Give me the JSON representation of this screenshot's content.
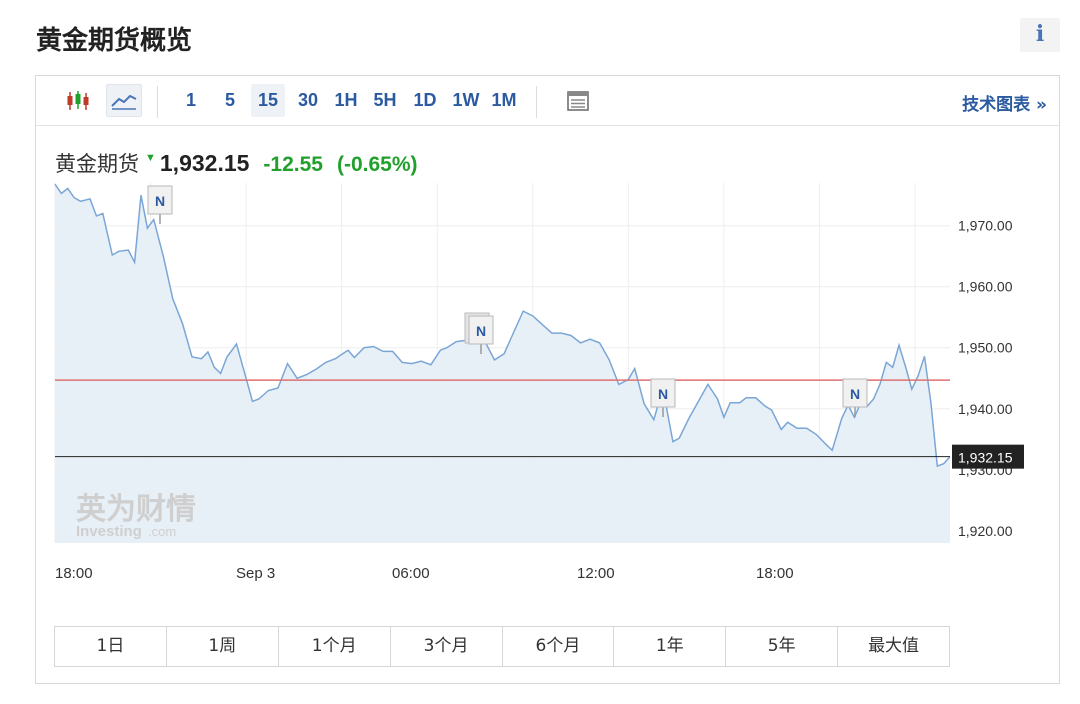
{
  "page": {
    "title": "黄金期货概览",
    "info_label": "i"
  },
  "toolbar": {
    "chart_type_icons": [
      "candlestick-icon",
      "line-chart-icon"
    ],
    "intervals": [
      "1",
      "5",
      "15",
      "30",
      "1H",
      "5H",
      "1D",
      "1W",
      "1M"
    ],
    "active_interval": "15",
    "table_icon": "table-icon",
    "tech_link": "技术图表 »"
  },
  "quote": {
    "name": "黄金期货",
    "direction": "down",
    "price": "1,932.15",
    "change": "-12.55",
    "change_pct": "(-0.65%)"
  },
  "watermark": {
    "cn": "英为财情",
    "en_main": "Investing",
    "en_suffix": ".com"
  },
  "periods": [
    "1日",
    "1周",
    "1个月",
    "3个月",
    "6个月",
    "1年",
    "5年",
    "最大值"
  ],
  "colors": {
    "line": "#7aa6d6",
    "area": "#e6eef6",
    "reference_line": "#e07070",
    "price_line": "#222222",
    "down": "#21a12b",
    "link": "#2b5aa0"
  },
  "chart_data": {
    "type": "area",
    "title": "",
    "xlabel": "",
    "ylabel": "",
    "ylim": [
      1918,
      1977
    ],
    "y_ticks": [
      "1,920.00",
      "1,930.00",
      "1,940.00",
      "1,950.00",
      "1,960.00",
      "1,970.00"
    ],
    "y_tick_values": [
      1920,
      1930,
      1940,
      1950,
      1960,
      1970
    ],
    "x_ticks": [
      "18:00",
      "Sep 3",
      "06:00",
      "12:00",
      "18:00"
    ],
    "x_tick_hours": [
      0,
      6,
      12,
      18,
      24
    ],
    "x_range_hours": [
      0,
      26.3
    ],
    "reference_line": 1944.7,
    "last_price_label": "1,932.15",
    "last_price": 1932.15,
    "news_markers": [
      {
        "label": "N",
        "hour": 3.2
      },
      {
        "label": "N",
        "hour": 12.7
      },
      {
        "label": "N",
        "hour": 18.3
      },
      {
        "label": "N",
        "hour": 23.8
      }
    ],
    "series": [
      {
        "values": [
          [
            0.0,
            1976.8
          ],
          [
            0.2,
            1975.3
          ],
          [
            0.4,
            1976.1
          ],
          [
            0.6,
            1974.6
          ],
          [
            0.8,
            1974.0
          ],
          [
            1.1,
            1974.4
          ],
          [
            1.3,
            1971.6
          ],
          [
            1.5,
            1972.0
          ],
          [
            1.8,
            1965.2
          ],
          [
            2.0,
            1965.8
          ],
          [
            2.3,
            1966.0
          ],
          [
            2.5,
            1964.0
          ],
          [
            2.7,
            1975.0
          ],
          [
            2.9,
            1969.6
          ],
          [
            3.1,
            1971.0
          ],
          [
            3.4,
            1965.0
          ],
          [
            3.7,
            1958.0
          ],
          [
            4.0,
            1954.0
          ],
          [
            4.3,
            1948.5
          ],
          [
            4.6,
            1948.2
          ],
          [
            4.8,
            1949.3
          ],
          [
            5.0,
            1946.8
          ],
          [
            5.2,
            1945.8
          ],
          [
            5.4,
            1948.5
          ],
          [
            5.7,
            1950.6
          ],
          [
            6.0,
            1945.0
          ],
          [
            6.2,
            1941.2
          ],
          [
            6.4,
            1941.6
          ],
          [
            6.7,
            1943.0
          ],
          [
            7.0,
            1943.4
          ],
          [
            7.3,
            1947.4
          ],
          [
            7.6,
            1945.0
          ],
          [
            7.9,
            1945.6
          ],
          [
            8.2,
            1946.5
          ],
          [
            8.5,
            1947.6
          ],
          [
            8.8,
            1948.2
          ],
          [
            9.2,
            1949.6
          ],
          [
            9.4,
            1948.4
          ],
          [
            9.7,
            1950.0
          ],
          [
            10.0,
            1950.2
          ],
          [
            10.3,
            1949.4
          ],
          [
            10.6,
            1949.4
          ],
          [
            10.9,
            1947.6
          ],
          [
            11.2,
            1947.4
          ],
          [
            11.5,
            1947.8
          ],
          [
            11.8,
            1947.2
          ],
          [
            12.1,
            1949.6
          ],
          [
            12.3,
            1950.0
          ],
          [
            12.6,
            1951.0
          ],
          [
            12.9,
            1951.2
          ],
          [
            13.2,
            1951.4
          ],
          [
            13.5,
            1951.0
          ],
          [
            13.8,
            1948.0
          ],
          [
            14.1,
            1949.0
          ],
          [
            14.4,
            1952.5
          ],
          [
            14.7,
            1956.0
          ],
          [
            15.0,
            1955.2
          ],
          [
            15.3,
            1953.8
          ],
          [
            15.6,
            1952.4
          ],
          [
            15.9,
            1952.4
          ],
          [
            16.2,
            1952.0
          ],
          [
            16.5,
            1950.8
          ],
          [
            16.8,
            1951.4
          ],
          [
            17.1,
            1950.8
          ],
          [
            17.4,
            1948.0
          ],
          [
            17.7,
            1944.0
          ],
          [
            18.0,
            1944.8
          ],
          [
            18.2,
            1946.6
          ],
          [
            18.5,
            1940.8
          ],
          [
            18.8,
            1938.2
          ],
          [
            19.0,
            1941.8
          ],
          [
            19.2,
            1940.2
          ],
          [
            19.4,
            1934.6
          ],
          [
            19.6,
            1935.2
          ],
          [
            19.9,
            1938.4
          ],
          [
            20.2,
            1941.2
          ],
          [
            20.5,
            1944.0
          ],
          [
            20.8,
            1941.6
          ],
          [
            21.0,
            1938.6
          ],
          [
            21.2,
            1941.0
          ],
          [
            21.5,
            1941.0
          ],
          [
            21.7,
            1941.8
          ],
          [
            22.0,
            1941.8
          ],
          [
            22.3,
            1940.4
          ],
          [
            22.5,
            1939.8
          ],
          [
            22.8,
            1936.6
          ],
          [
            23.0,
            1937.8
          ],
          [
            23.3,
            1936.8
          ],
          [
            23.6,
            1936.8
          ],
          [
            23.9,
            1935.8
          ],
          [
            24.2,
            1934.2
          ],
          [
            24.4,
            1933.2
          ],
          [
            24.7,
            1938.4
          ],
          [
            24.9,
            1940.6
          ],
          [
            25.1,
            1938.6
          ],
          [
            25.3,
            1941.0
          ],
          [
            25.5,
            1940.4
          ],
          [
            25.7,
            1941.6
          ],
          [
            25.9,
            1944.0
          ],
          [
            26.1,
            1947.6
          ],
          [
            26.3,
            1946.8
          ],
          [
            26.5,
            1950.4
          ],
          [
            26.7,
            1947.0
          ],
          [
            26.9,
            1943.2
          ],
          [
            27.1,
            1945.4
          ],
          [
            27.3,
            1948.6
          ],
          [
            27.5,
            1941.0
          ],
          [
            27.7,
            1930.6
          ],
          [
            27.9,
            1931.0
          ],
          [
            28.1,
            1932.15
          ]
        ]
      }
    ],
    "grid": true,
    "legend": "none"
  }
}
